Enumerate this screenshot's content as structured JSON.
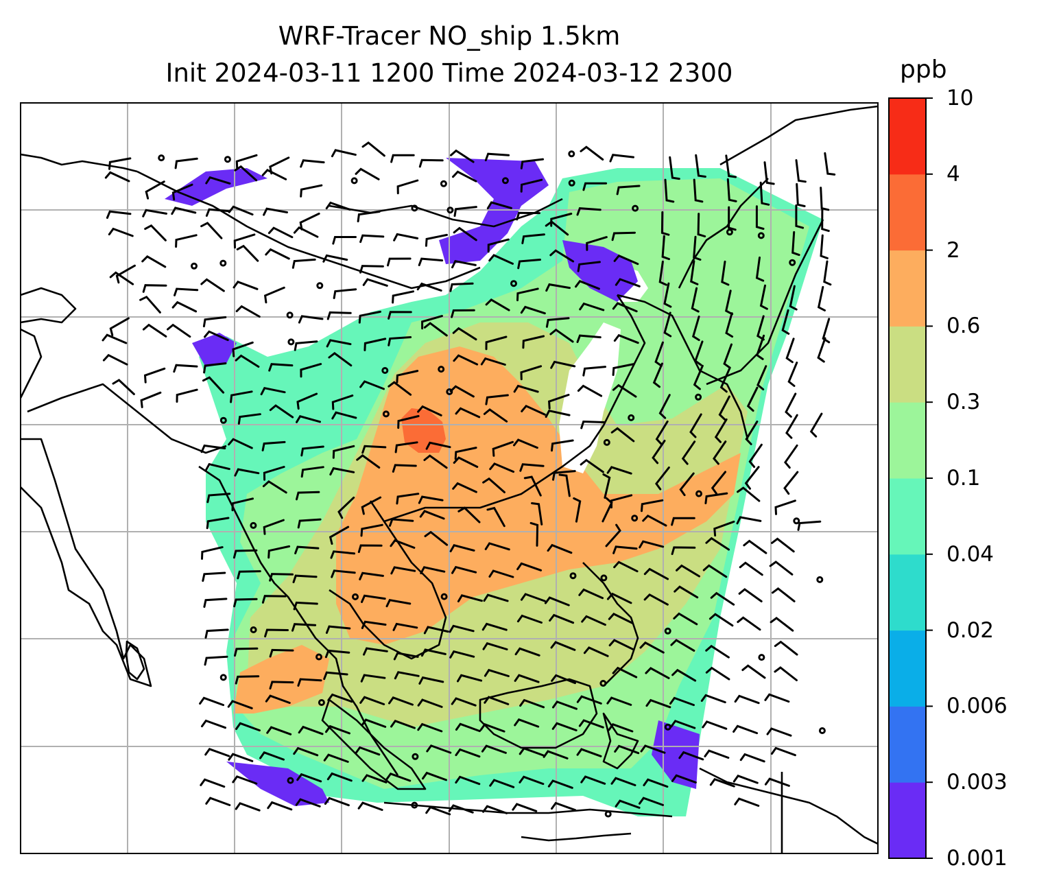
{
  "title": {
    "line1": "WRF-Tracer NO_ship 1.5km",
    "line2": "Init 2024-03-11 1200 Time 2024-03-12 2300"
  },
  "colorbar": {
    "unit": "ppb",
    "ticks": [
      "0.001",
      "0.003",
      "0.006",
      "0.02",
      "0.04",
      "0.1",
      "0.3",
      "0.6",
      "2",
      "4",
      "10"
    ],
    "colors": [
      "#6a2cf5",
      "#3373f2",
      "#0aaee8",
      "#2edccc",
      "#66f6b9",
      "#9cf59a",
      "#cade82",
      "#fdad5e",
      "#fb6c36",
      "#f72c17"
    ]
  },
  "field": {
    "variable": "NO_ship tracer concentration",
    "level": "1.5km",
    "white_mask_color": "#ffffff"
  },
  "gridlines": {
    "color": "#b0b0b0"
  },
  "wind_barbs": {
    "color": "#000000",
    "calm_marker": "circle"
  },
  "coastline": {
    "color": "#000000"
  }
}
